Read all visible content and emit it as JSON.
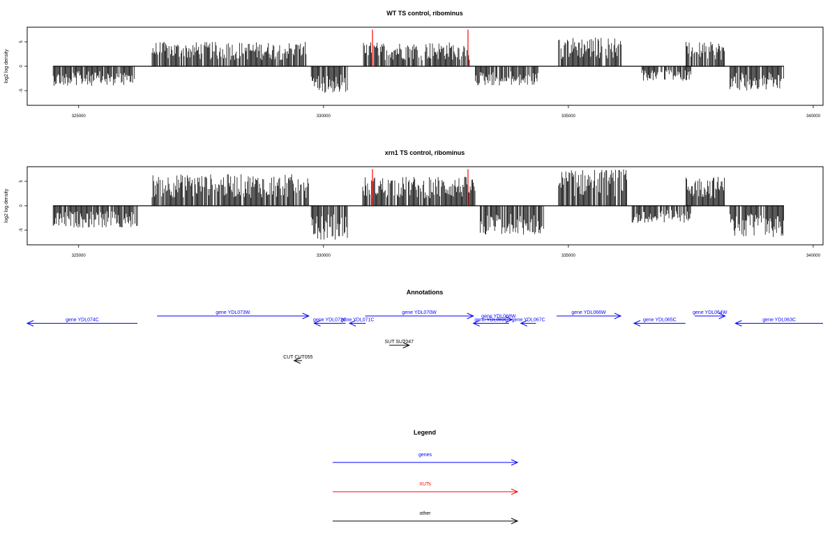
{
  "colors": {
    "gene": "#0000ff",
    "xut": "#ff0000",
    "other": "#000000",
    "marker": "#ff0000"
  },
  "chart_data": [
    {
      "type": "bar",
      "title": "WT TS control, ribominus",
      "ylabel": "log2 log density",
      "xlim": [
        323950,
        340200
      ],
      "ylim": [
        -8,
        8
      ],
      "xticks": [
        325000,
        330000,
        335000,
        340000
      ],
      "yticks": [
        -5,
        0,
        5
      ],
      "markers": [
        331000,
        332950
      ],
      "segments": [
        {
          "x": [
            324480,
            326150
          ],
          "max": 4.0,
          "sign": -1
        },
        {
          "x": [
            326500,
            329650
          ],
          "max": 5.0,
          "sign": 1
        },
        {
          "x": [
            329750,
            330500
          ],
          "max": 5.5,
          "sign": -1
        },
        {
          "x": [
            330800,
            333000
          ],
          "max": 5.0,
          "sign": 1
        },
        {
          "x": [
            333100,
            334400
          ],
          "max": 4.0,
          "sign": -1
        },
        {
          "x": [
            334800,
            336100
          ],
          "max": 6.0,
          "sign": 1
        },
        {
          "x": [
            336500,
            337500
          ],
          "max": 3.0,
          "sign": -1
        },
        {
          "x": [
            337400,
            338200
          ],
          "max": 5.0,
          "sign": 1
        },
        {
          "x": [
            338300,
            339400
          ],
          "max": 5.0,
          "sign": -1
        }
      ]
    },
    {
      "type": "bar",
      "title": "xrn1 TS control, ribominus",
      "ylabel": "log2 log density",
      "xlim": [
        323950,
        340200
      ],
      "ylim": [
        -8,
        8
      ],
      "xticks": [
        325000,
        330000,
        335000,
        340000
      ],
      "yticks": [
        -5,
        0,
        5
      ],
      "markers": [
        331000,
        332950
      ],
      "segments": [
        {
          "x": [
            324480,
            326200
          ],
          "max": 4.5,
          "sign": -1
        },
        {
          "x": [
            326500,
            329700
          ],
          "max": 6.5,
          "sign": 1
        },
        {
          "x": [
            329750,
            330500
          ],
          "max": 7.0,
          "sign": -1
        },
        {
          "x": [
            330800,
            333100
          ],
          "max": 6.0,
          "sign": 1
        },
        {
          "x": [
            333200,
            334500
          ],
          "max": 6.0,
          "sign": -1
        },
        {
          "x": [
            334800,
            336200
          ],
          "max": 7.5,
          "sign": 1
        },
        {
          "x": [
            336300,
            337500
          ],
          "max": 3.5,
          "sign": -1
        },
        {
          "x": [
            337400,
            338200
          ],
          "max": 6.0,
          "sign": 1
        },
        {
          "x": [
            338300,
            339400
          ],
          "max": 6.5,
          "sign": -1
        }
      ]
    }
  ],
  "annotations": {
    "title": "Annotations",
    "items": [
      {
        "label": "gene YDL074C",
        "type": "gene",
        "start": 326200,
        "end": 323950,
        "row": 1
      },
      {
        "label": "gene YDL073W",
        "type": "gene",
        "start": 326600,
        "end": 329700,
        "row": 0
      },
      {
        "label": "gene YDL072C",
        "type": "gene",
        "start": 330450,
        "end": 329810,
        "row": 1
      },
      {
        "label": "gene YDL071C",
        "type": "gene",
        "start": 330860,
        "end": 330530,
        "row": 1
      },
      {
        "label": "gene YDL070W",
        "type": "gene",
        "start": 330850,
        "end": 333060,
        "row": 0
      },
      {
        "label": "gene YDL069C",
        "type": "gene",
        "start": 333790,
        "end": 333060,
        "row": 1
      },
      {
        "label": "gene YDL068W",
        "type": "gene",
        "start": 333300,
        "end": 333850,
        "row": 0.5
      },
      {
        "label": "gene YDL067C",
        "type": "gene",
        "start": 334340,
        "end": 334030,
        "row": 1
      },
      {
        "label": "gene YDL066W",
        "type": "gene",
        "start": 334760,
        "end": 336070,
        "row": 0
      },
      {
        "label": "gene YDL065C",
        "type": "gene",
        "start": 337390,
        "end": 336340,
        "row": 1
      },
      {
        "label": "gene YDL064W",
        "type": "gene",
        "start": 337580,
        "end": 338200,
        "row": 0
      },
      {
        "label": "gene YDL063C",
        "type": "gene",
        "start": 340200,
        "end": 338410,
        "row": 1
      }
    ],
    "other": [
      {
        "label": "SUT SUT047",
        "start": 331340,
        "end": 331750,
        "row": 0
      },
      {
        "label": "CUT CUT055",
        "start": 329560,
        "end": 329400,
        "row": 1
      }
    ]
  },
  "legend": {
    "title": "Legend",
    "items": [
      {
        "label": "genes",
        "type": "gene"
      },
      {
        "label": "XUTs",
        "type": "xut"
      },
      {
        "label": "other",
        "type": "other"
      }
    ]
  }
}
